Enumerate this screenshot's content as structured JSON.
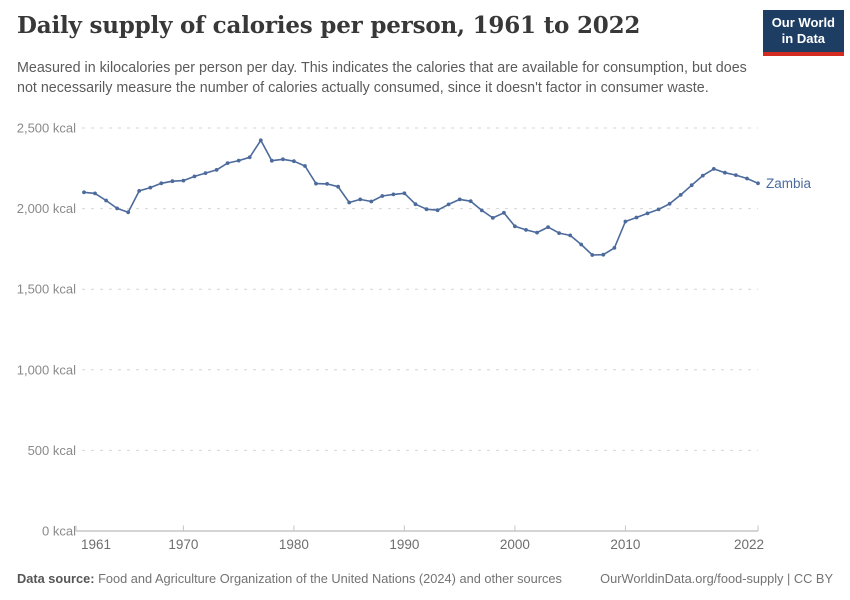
{
  "header": {
    "title": "Daily supply of calories per person, 1961 to 2022",
    "subtitle": "Measured in kilocalories per person per day. This indicates the calories that are available for consumption, but does not necessarily measure the number of calories actually consumed, since it doesn't factor in consumer waste.",
    "logo": {
      "line1": "Our World",
      "line2": "in Data",
      "bg_color": "#1d3d63",
      "stripe_color": "#d42b21"
    }
  },
  "chart_data": {
    "type": "line",
    "title": "Daily supply of calories per person, 1961 to 2022",
    "entity": "Zambia",
    "unit": "kcal",
    "ylim": [
      0,
      2500
    ],
    "yticks": [
      0,
      500,
      1000,
      1500,
      2000,
      2500
    ],
    "ytick_labels": [
      "0 kcal",
      "500 kcal",
      "1,000 kcal",
      "1,500 kcal",
      "2,000 kcal",
      "2,500 kcal"
    ],
    "xticks": [
      1961,
      1970,
      1980,
      1990,
      2000,
      2010,
      2022
    ],
    "grid": "horizontal-dashed",
    "legend_position": "end-of-line-label",
    "line_color": "#4c6a9c",
    "x": [
      1961,
      1962,
      1963,
      1964,
      1965,
      1966,
      1967,
      1968,
      1969,
      1970,
      1971,
      1972,
      1973,
      1974,
      1975,
      1976,
      1977,
      1978,
      1979,
      1980,
      1981,
      1982,
      1983,
      1984,
      1985,
      1986,
      1987,
      1988,
      1989,
      1990,
      1991,
      1992,
      1993,
      1994,
      1995,
      1996,
      1997,
      1998,
      1999,
      2000,
      2001,
      2002,
      2003,
      2004,
      2005,
      2006,
      2007,
      2008,
      2009,
      2010,
      2011,
      2012,
      2013,
      2014,
      2015,
      2016,
      2017,
      2018,
      2019,
      2020,
      2021,
      2022
    ],
    "values": [
      2101,
      2094,
      2050,
      2001,
      1977,
      2110,
      2130,
      2157,
      2170,
      2174,
      2200,
      2220,
      2240,
      2282,
      2298,
      2318,
      2424,
      2297,
      2306,
      2294,
      2264,
      2155,
      2153,
      2136,
      2038,
      2057,
      2044,
      2078,
      2088,
      2095,
      2027,
      1996,
      1990,
      2026,
      2057,
      2046,
      1989,
      1942,
      1974,
      1890,
      1868,
      1851,
      1885,
      1848,
      1834,
      1777,
      1712,
      1714,
      1756,
      1920,
      1945,
      1970,
      1995,
      2030,
      2085,
      2145,
      2205,
      2246,
      2223,
      2208,
      2187,
      2157
    ]
  },
  "footer": {
    "source_label": "Data source:",
    "source_text": " Food and Agriculture Organization of the United Nations (2024) and other sources",
    "link_text": "OurWorldinData.org/food-supply | CC BY"
  }
}
